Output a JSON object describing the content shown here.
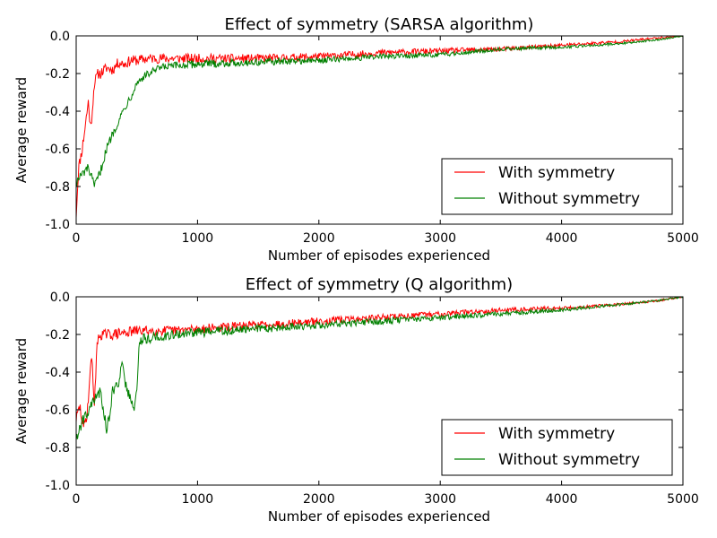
{
  "figure": {
    "background": "#ffffff"
  },
  "chart_data": [
    {
      "type": "line",
      "title": "Effect of symmetry (SARSA algorithm)",
      "xlabel": "Number of episodes experienced",
      "ylabel": "Average reward",
      "xlim": [
        0,
        5000
      ],
      "ylim": [
        -1.0,
        0.0
      ],
      "xticks": [
        "0",
        "1000",
        "2000",
        "3000",
        "4000",
        "5000"
      ],
      "yticks": [
        "-1.0",
        "-0.8",
        "-0.6",
        "-0.4",
        "-0.2",
        "0.0"
      ],
      "grid": false,
      "legend": "lower-right",
      "series": [
        {
          "name": "With symmetry",
          "color": "#ff0000",
          "noise": 0.03,
          "x": [
            0,
            20,
            50,
            80,
            100,
            120,
            150,
            180,
            200,
            250,
            300,
            350,
            400,
            450,
            500,
            600,
            800,
            1000,
            1500,
            2000,
            2500,
            3000,
            3500,
            4000,
            4500,
            4800,
            5000
          ],
          "values": [
            -0.95,
            -0.7,
            -0.6,
            -0.45,
            -0.35,
            -0.5,
            -0.25,
            -0.2,
            -0.2,
            -0.17,
            -0.18,
            -0.14,
            -0.15,
            -0.13,
            -0.13,
            -0.12,
            -0.12,
            -0.12,
            -0.12,
            -0.11,
            -0.09,
            -0.08,
            -0.07,
            -0.05,
            -0.03,
            -0.01,
            0.0
          ]
        },
        {
          "name": "Without symmetry",
          "color": "#008000",
          "noise": 0.025,
          "x": [
            0,
            30,
            100,
            150,
            200,
            250,
            300,
            350,
            400,
            450,
            500,
            550,
            600,
            700,
            800,
            1000,
            1500,
            2000,
            2500,
            3000,
            3500,
            4000,
            4500,
            4800,
            5000
          ],
          "values": [
            -0.78,
            -0.75,
            -0.7,
            -0.8,
            -0.72,
            -0.6,
            -0.52,
            -0.45,
            -0.38,
            -0.32,
            -0.25,
            -0.22,
            -0.2,
            -0.17,
            -0.16,
            -0.15,
            -0.14,
            -0.13,
            -0.11,
            -0.1,
            -0.07,
            -0.06,
            -0.04,
            -0.02,
            0.0
          ]
        }
      ]
    },
    {
      "type": "line",
      "title": "Effect of symmetry (Q algorithm)",
      "xlabel": "Number of episodes experienced",
      "ylabel": "Average reward",
      "xlim": [
        0,
        5000
      ],
      "ylim": [
        -1.0,
        0.0
      ],
      "xticks": [
        "0",
        "1000",
        "2000",
        "3000",
        "4000",
        "5000"
      ],
      "yticks": [
        "-1.0",
        "-0.8",
        "-0.6",
        "-0.4",
        "-0.2",
        "0.0"
      ],
      "grid": false,
      "legend": "lower-right",
      "series": [
        {
          "name": "With symmetry",
          "color": "#ff0000",
          "noise": 0.03,
          "x": [
            0,
            30,
            60,
            90,
            110,
            130,
            150,
            170,
            200,
            300,
            400,
            500,
            600,
            800,
            1000,
            1500,
            2000,
            2500,
            3000,
            3500,
            4000,
            4500,
            4800,
            5000
          ],
          "values": [
            -0.65,
            -0.58,
            -0.7,
            -0.62,
            -0.45,
            -0.3,
            -0.6,
            -0.25,
            -0.2,
            -0.2,
            -0.19,
            -0.18,
            -0.18,
            -0.18,
            -0.17,
            -0.15,
            -0.13,
            -0.11,
            -0.09,
            -0.07,
            -0.06,
            -0.04,
            -0.02,
            0.0
          ]
        },
        {
          "name": "Without symmetry",
          "color": "#008000",
          "noise": 0.03,
          "x": [
            0,
            30,
            60,
            100,
            150,
            200,
            250,
            280,
            300,
            350,
            380,
            400,
            450,
            480,
            500,
            520,
            550,
            600,
            800,
            1000,
            1500,
            2000,
            2500,
            3000,
            3500,
            4000,
            4500,
            4800,
            5000
          ],
          "values": [
            -0.75,
            -0.7,
            -0.65,
            -0.6,
            -0.55,
            -0.5,
            -0.7,
            -0.62,
            -0.5,
            -0.45,
            -0.35,
            -0.45,
            -0.55,
            -0.58,
            -0.5,
            -0.25,
            -0.22,
            -0.22,
            -0.2,
            -0.19,
            -0.17,
            -0.15,
            -0.13,
            -0.11,
            -0.09,
            -0.07,
            -0.04,
            -0.02,
            0.0
          ]
        }
      ]
    }
  ]
}
